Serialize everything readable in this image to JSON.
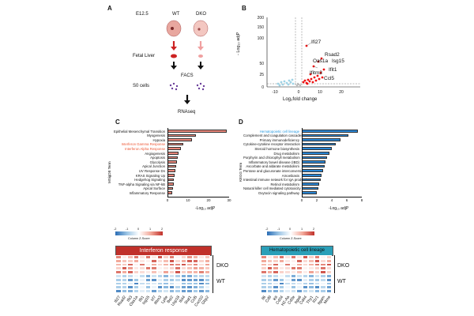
{
  "panels": {
    "A": {
      "label": "A",
      "stage": "E12.5",
      "wt": "WT",
      "dko": "DKO",
      "fetal_liver": "Fetal Liver",
      "facs": "FACS",
      "s0_cells": "S0 cells",
      "rnaseq": "RNAseq",
      "colors": {
        "embryo": "#e8a79f",
        "arrow_red": "#cc2222",
        "arrow_pink": "#f0a0a0",
        "cells": "#6a3d9a"
      }
    },
    "B": {
      "label": "B",
      "ylabel": "- Log₁₀ adjP",
      "xlabel": "Log₂fold change",
      "genes": [
        "Ifi27",
        "Rsad2",
        "Oas1a",
        "Isg15",
        "Ifit1",
        "Ifitm3",
        "Ccl5"
      ],
      "colors": {
        "up": "#ee1111",
        "down": "#9fd3e6",
        "ns": "#bbbbbb"
      }
    },
    "C": {
      "label": "C",
      "ylabel": "MSigDB Term",
      "xlabel": "-Log₁₀ adjP",
      "bar_color": "#e8867a",
      "highlight_color": "#ee5533",
      "terms": [
        {
          "name": "Epithelial Mesenchymal Transition",
          "value": 29,
          "hl": false
        },
        {
          "name": "Myogenesis",
          "value": 14,
          "hl": false
        },
        {
          "name": "Hypoxia",
          "value": 12,
          "hl": false
        },
        {
          "name": "Interferon Gamma Response",
          "value": 7.5,
          "hl": true
        },
        {
          "name": "Interferon Alpha Response",
          "value": 6.5,
          "hl": true
        },
        {
          "name": "Angiogenesis",
          "value": 5.5,
          "hl": false
        },
        {
          "name": "Apoptosis",
          "value": 5,
          "hl": false
        },
        {
          "name": "Glycolysis",
          "value": 4.6,
          "hl": false
        },
        {
          "name": "Apical Junction",
          "value": 4.2,
          "hl": false
        },
        {
          "name": "UV Response Dn",
          "value": 3.8,
          "hl": false
        },
        {
          "name": "KRAS Signaling Up",
          "value": 3.5,
          "hl": false
        },
        {
          "name": "Hedgehog Signaling",
          "value": 3.2,
          "hl": false
        },
        {
          "name": "TNF-alpha Signaling via NF-kB",
          "value": 3,
          "hl": false
        },
        {
          "name": "Apical Surface",
          "value": 2.6,
          "hl": false
        },
        {
          "name": "Inflammatory Response",
          "value": 2.3,
          "hl": false
        }
      ],
      "xticks": [
        "0",
        "10",
        "20",
        "30"
      ],
      "xmax": 30
    },
    "D": {
      "label": "D",
      "ylabel": "KEGG Term",
      "xlabel": "-Log₁₀ adjP",
      "bar_color": "#2a86d4",
      "highlight_color": "#2a9be0",
      "terms": [
        {
          "name": "Hematopoietic cell lineage",
          "value": 7.5,
          "hl": true
        },
        {
          "name": "Complement and coagulation cascades",
          "value": 6.2,
          "hl": false
        },
        {
          "name": "Primary immunodeficiency",
          "value": 5.2,
          "hl": false
        },
        {
          "name": "Cytokine-cytokine receptor interaction",
          "value": 4.5,
          "hl": false
        },
        {
          "name": "Steroid hormone biosynthesis",
          "value": 4,
          "hl": false
        },
        {
          "name": "Drug metabolism",
          "value": 3.7,
          "hl": false
        },
        {
          "name": "Porphyrin and chlorophyll metabolism",
          "value": 3.4,
          "hl": false
        },
        {
          "name": "Inflammatory bowel disease (IBD)",
          "value": 3.2,
          "hl": false
        },
        {
          "name": "Ascorbate and aldarate metabolism",
          "value": 3,
          "hl": false
        },
        {
          "name": "Pentose and glucuronate interconversions",
          "value": 2.8,
          "hl": false
        },
        {
          "name": "Amoebiasis",
          "value": 2.6,
          "hl": false
        },
        {
          "name": "Intestinal immune network for IgA production",
          "value": 2.5,
          "hl": false
        },
        {
          "name": "Retinol metabolism",
          "value": 2.3,
          "hl": false
        },
        {
          "name": "Natural killer cell mediated cytotoxicity",
          "value": 2.2,
          "hl": false
        },
        {
          "name": "Oxytocin signaling pathway",
          "value": 2,
          "hl": false
        }
      ],
      "xticks": [
        "0",
        "2",
        "4",
        "6",
        "8"
      ],
      "xmax": 8
    },
    "heat_left": {
      "title": "Interferon response",
      "title_color": "#c0302a",
      "legend_title": "Column Z-Score",
      "legend_ticks": [
        "-2",
        "-1",
        "0",
        "1",
        "2"
      ],
      "dko": "DKO",
      "wt": "WT",
      "genes": [
        "Ifi27",
        "Rsad2",
        "Ifit3",
        "Oas1a",
        "Ifit1",
        "Isg15",
        "Irf7",
        "Ifitm3",
        "Ly6e",
        "Bst2",
        "Usp18",
        "Ifi44",
        "Stat1",
        "Ccl5",
        "Cxcl10",
        "Gbp2"
      ],
      "rows_dko": 5,
      "rows_wt": 5
    },
    "heat_right": {
      "title": "Hematopoietic cell lineage",
      "title_color": "#2a9fb8",
      "legend_title": "Column Z-Score",
      "legend_ticks": [
        "-2",
        "-1",
        "0",
        "1",
        "2"
      ],
      "dko": "DKO",
      "wt": "WT",
      "genes": [
        "Il6",
        "Cd9",
        "Kit",
        "Cd34",
        "H2-Aa",
        "Cd3e",
        "Itga6",
        "Cd44",
        "Thy1",
        "Il1r1",
        "Itgam",
        "Mme"
      ],
      "rows_dko": 5,
      "rows_wt": 5
    }
  }
}
